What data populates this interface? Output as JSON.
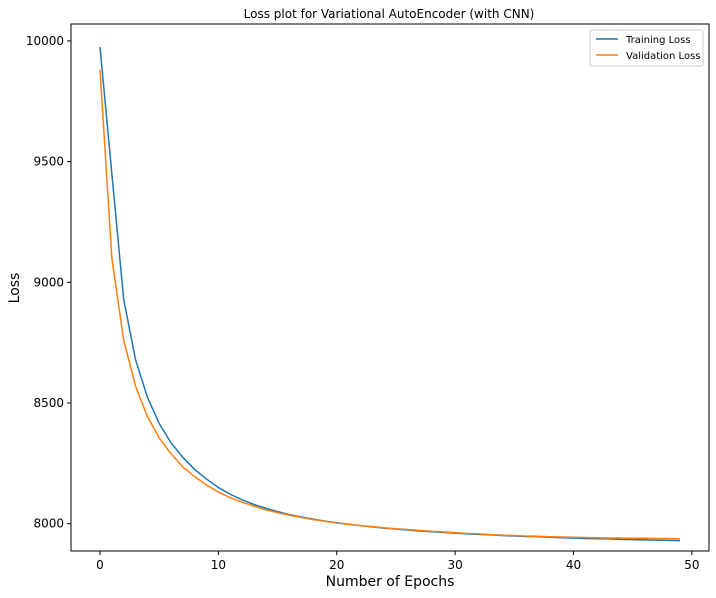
{
  "chart_data": {
    "type": "line",
    "title": "Loss plot for Variational AutoEncoder (with CNN)",
    "xlabel": "Number of Epochs",
    "ylabel": "Loss",
    "xlim": [
      -2.45,
      51.45
    ],
    "ylim": [
      7887,
      10070
    ],
    "xticks": [
      0,
      10,
      20,
      30,
      40,
      50
    ],
    "yticks": [
      8000,
      8500,
      9000,
      9500,
      10000
    ],
    "grid": false,
    "legend_position": "top-right",
    "x": [
      0,
      1,
      2,
      3,
      4,
      5,
      6,
      7,
      8,
      9,
      10,
      11,
      12,
      13,
      14,
      15,
      16,
      17,
      18,
      19,
      20,
      21,
      22,
      23,
      24,
      25,
      26,
      27,
      28,
      29,
      30,
      31,
      32,
      33,
      34,
      35,
      36,
      37,
      38,
      39,
      40,
      41,
      42,
      43,
      44,
      45,
      46,
      47,
      48,
      49
    ],
    "series": [
      {
        "name": "Training Loss",
        "color": "#1f77b4",
        "values": [
          9975,
          9450,
          8930,
          8680,
          8525,
          8415,
          8335,
          8275,
          8225,
          8185,
          8150,
          8122,
          8099,
          8080,
          8064,
          8050,
          8038,
          8028,
          8019,
          8011,
          8004,
          7998,
          7992,
          7987,
          7982,
          7978,
          7974,
          7970,
          7967,
          7964,
          7961,
          7958,
          7956,
          7954,
          7951,
          7949,
          7947,
          7946,
          7944,
          7942,
          7941,
          7939,
          7938,
          7937,
          7935,
          7934,
          7933,
          7932,
          7931,
          7930
        ]
      },
      {
        "name": "Validation Loss",
        "color": "#ff7f0e",
        "values": [
          9880,
          9100,
          8760,
          8570,
          8445,
          8355,
          8290,
          8235,
          8195,
          8160,
          8131,
          8108,
          8089,
          8073,
          8058,
          8046,
          8035,
          8026,
          8017,
          8010,
          8003,
          7997,
          7992,
          7988,
          7983,
          7979,
          7976,
          7972,
          7969,
          7966,
          7963,
          7960,
          7958,
          7955,
          7953,
          7951,
          7949,
          7948,
          7946,
          7945,
          7944,
          7943,
          7942,
          7941,
          7941,
          7940,
          7940,
          7939,
          7939,
          7938
        ]
      }
    ]
  }
}
